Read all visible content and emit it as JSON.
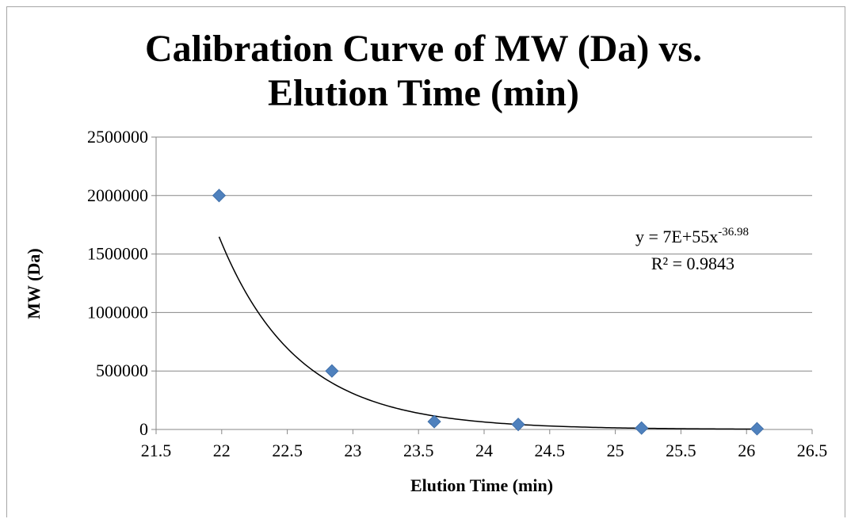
{
  "chart_data": {
    "type": "scatter",
    "title_line1": "Calibration Curve of MW (Da) vs.",
    "title_line2": "Elution Time (min)",
    "xlabel": "Elution Time (min)",
    "ylabel": "MW (Da)",
    "xlim": [
      21.5,
      26.5
    ],
    "ylim": [
      0,
      2500000
    ],
    "xticks": [
      "21.5",
      "22",
      "22.5",
      "23",
      "23.5",
      "24",
      "24.5",
      "25",
      "25.5",
      "26",
      "26.5"
    ],
    "yticks": [
      "0",
      "500000",
      "1000000",
      "1500000",
      "2000000",
      "2500000"
    ],
    "grid": "horizontal",
    "marker_color": "#4f81bd",
    "series": [
      {
        "points": [
          {
            "x": 21.98,
            "y": 2000000
          },
          {
            "x": 22.84,
            "y": 500000
          },
          {
            "x": 23.62,
            "y": 67000
          },
          {
            "x": 24.26,
            "y": 43000
          },
          {
            "x": 25.2,
            "y": 12000
          },
          {
            "x": 26.08,
            "y": 6000
          }
        ]
      }
    ],
    "trendline": {
      "type": "power",
      "coef": 7e+55,
      "exponent": -36.98,
      "x_range": [
        21.98,
        26.08
      ],
      "equation_prefix": "y = 7E+55x",
      "equation_exponent": "-36.98",
      "r2_label": "R² = 0.9843"
    }
  }
}
